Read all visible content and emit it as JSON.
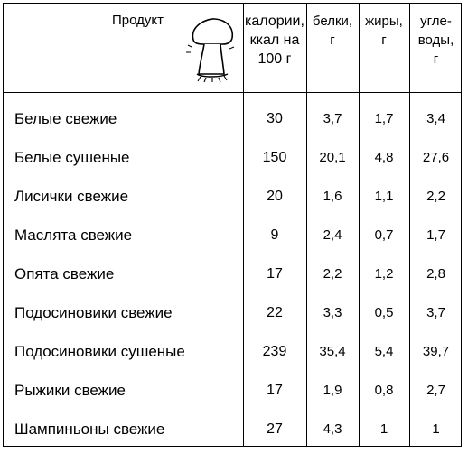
{
  "header": {
    "product": "Продукт",
    "calories": [
      "калории,",
      "ккал на",
      "100 г"
    ],
    "proteins": [
      "белки,",
      "г"
    ],
    "fats": [
      "жиры,",
      "г"
    ],
    "carbs": [
      "угле-",
      "воды,",
      "г"
    ],
    "icon": "mushroom-icon"
  },
  "rows": [
    {
      "name": "Белые свежие",
      "calories": "30",
      "proteins": "3,7",
      "fats": "1,7",
      "carbs": "3,4"
    },
    {
      "name": "Белые сушеные",
      "calories": "150",
      "proteins": "20,1",
      "fats": "4,8",
      "carbs": "27,6"
    },
    {
      "name": "Лисички свежие",
      "calories": "20",
      "proteins": "1,6",
      "fats": "1,1",
      "carbs": "2,2"
    },
    {
      "name": "Маслята свежие",
      "calories": "9",
      "proteins": "2,4",
      "fats": "0,7",
      "carbs": "1,7"
    },
    {
      "name": "Опята свежие",
      "calories": "17",
      "proteins": "2,2",
      "fats": "1,2",
      "carbs": "2,8"
    },
    {
      "name": "Подосиновики свежие",
      "calories": "22",
      "proteins": "3,3",
      "fats": "0,5",
      "carbs": "3,7"
    },
    {
      "name": "Подосиновики сушеные",
      "calories": "239",
      "proteins": "35,4",
      "fats": "5,4",
      "carbs": "39,7"
    },
    {
      "name": "Рыжики свежие",
      "calories": "17",
      "proteins": "1,9",
      "fats": "0,8",
      "carbs": "2,7"
    },
    {
      "name": "Шампиньоны свежие",
      "calories": "27",
      "proteins": "4,3",
      "fats": "1",
      "carbs": "1"
    }
  ]
}
